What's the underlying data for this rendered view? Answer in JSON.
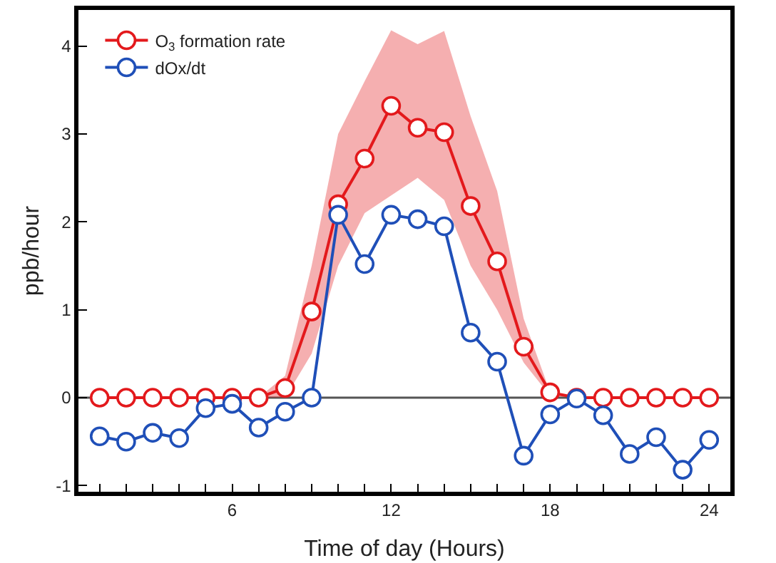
{
  "chart_data": {
    "type": "line",
    "xlabel": "Time of day (Hours)",
    "ylabel": "ppb/hour",
    "x": [
      1,
      2,
      3,
      4,
      5,
      6,
      7,
      8,
      9,
      10,
      11,
      12,
      13,
      14,
      15,
      16,
      17,
      18,
      19,
      20,
      21,
      22,
      23,
      24
    ],
    "series": [
      {
        "name": "O$_{3}$ formation rate",
        "color": "#e3191c",
        "values": [
          0,
          0,
          0,
          0,
          0,
          0,
          0,
          0.11,
          0.98,
          2.2,
          2.72,
          3.32,
          3.07,
          3.02,
          2.18,
          1.55,
          0.58,
          0.06,
          0,
          0,
          0,
          0,
          0,
          0
        ],
        "lower": [
          0,
          0,
          0,
          0,
          0,
          0,
          0,
          0,
          0.5,
          1.5,
          2.1,
          2.3,
          2.5,
          2.25,
          1.5,
          1.0,
          0.4,
          0.02,
          0,
          0,
          0,
          0,
          0,
          0
        ],
        "upper": [
          0,
          0,
          0,
          0,
          0,
          0,
          0,
          0.25,
          1.5,
          3.0,
          3.6,
          4.18,
          4.02,
          4.17,
          3.2,
          2.35,
          0.9,
          0.06,
          0,
          0,
          0,
          0,
          0,
          0
        ]
      },
      {
        "name": "dOx/dt",
        "color": "#1f4fb8",
        "values": [
          -0.44,
          -0.5,
          -0.4,
          -0.46,
          -0.12,
          -0.07,
          -0.34,
          -0.16,
          0,
          2.08,
          1.52,
          2.08,
          2.03,
          1.95,
          0.74,
          0.41,
          -0.66,
          -0.19,
          -0.01,
          -0.2,
          -0.64,
          -0.45,
          -0.82,
          -0.48
        ]
      }
    ],
    "xlim": [
      0.2,
      24.8
    ],
    "xticks": [
      {
        "value": 1,
        "label": null
      },
      {
        "value": 2,
        "label": null
      },
      {
        "value": 3,
        "label": null
      },
      {
        "value": 4,
        "label": null
      },
      {
        "value": 5,
        "label": null
      },
      6,
      {
        "value": 7,
        "label": null
      },
      {
        "value": 8,
        "label": null
      },
      {
        "value": 9,
        "label": null
      },
      {
        "value": 10,
        "label": null
      },
      {
        "value": 11,
        "label": null
      },
      12,
      {
        "value": 13,
        "label": null
      },
      {
        "value": 14,
        "label": null
      },
      {
        "value": 15,
        "label": null
      },
      {
        "value": 16,
        "label": null
      },
      {
        "value": 17,
        "label": null
      },
      18,
      {
        "value": 19,
        "label": null
      },
      {
        "value": 20,
        "label": null
      },
      {
        "value": 21,
        "label": null
      },
      {
        "value": 22,
        "label": null
      },
      {
        "value": 23,
        "label": null
      },
      24
    ],
    "ylim": [
      -1.07,
      4.41
    ],
    "yticks": [
      -1,
      0,
      1,
      2,
      3,
      4
    ],
    "ref_lines": [
      {
        "axis": "y",
        "value": 0,
        "color": "#555555"
      }
    ],
    "legend": "top left",
    "marker": "circle",
    "line_style": "solid",
    "grid": false
  }
}
